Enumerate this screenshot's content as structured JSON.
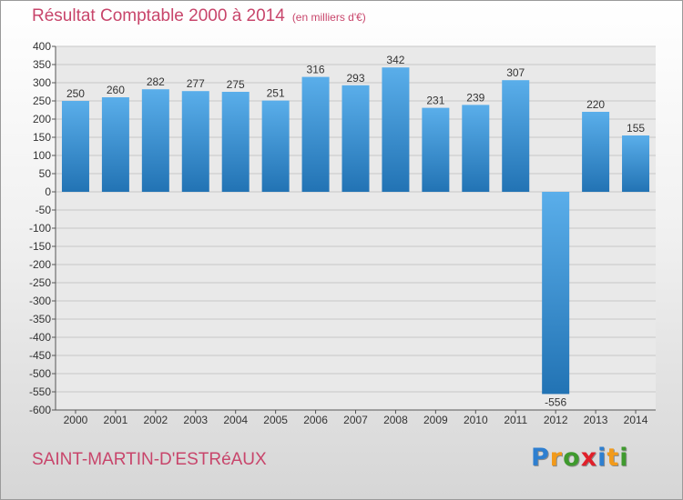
{
  "title": "Résultat Comptable 2000 à 2014",
  "subtitle": "(en milliers d'€)",
  "place": "SAINT-MARTIN-D'ESTRéAUX",
  "logo": {
    "text": "Proxiti",
    "colors": [
      "#2e7fd0",
      "#f29a1a",
      "#3f9a2e",
      "#e0202a",
      "#2e7fd0",
      "#f29a1a",
      "#3f9a2e"
    ]
  },
  "colors": {
    "title": "#c8456b",
    "bar_light": "#5aaeea",
    "bar_dark": "#2273b4",
    "grid": "#c8c8c8",
    "plot_bg": "#e9e9e9",
    "text": "#333333"
  },
  "chart_data": {
    "type": "bar",
    "categories": [
      "2000",
      "2001",
      "2002",
      "2003",
      "2004",
      "2005",
      "2006",
      "2007",
      "2008",
      "2009",
      "2010",
      "2011",
      "2012",
      "2013",
      "2014"
    ],
    "values": [
      250,
      260,
      282,
      277,
      275,
      251,
      316,
      293,
      342,
      231,
      239,
      307,
      -556,
      220,
      155
    ],
    "ylim": [
      -600,
      400
    ],
    "ytick_step": 50,
    "grid": true
  }
}
